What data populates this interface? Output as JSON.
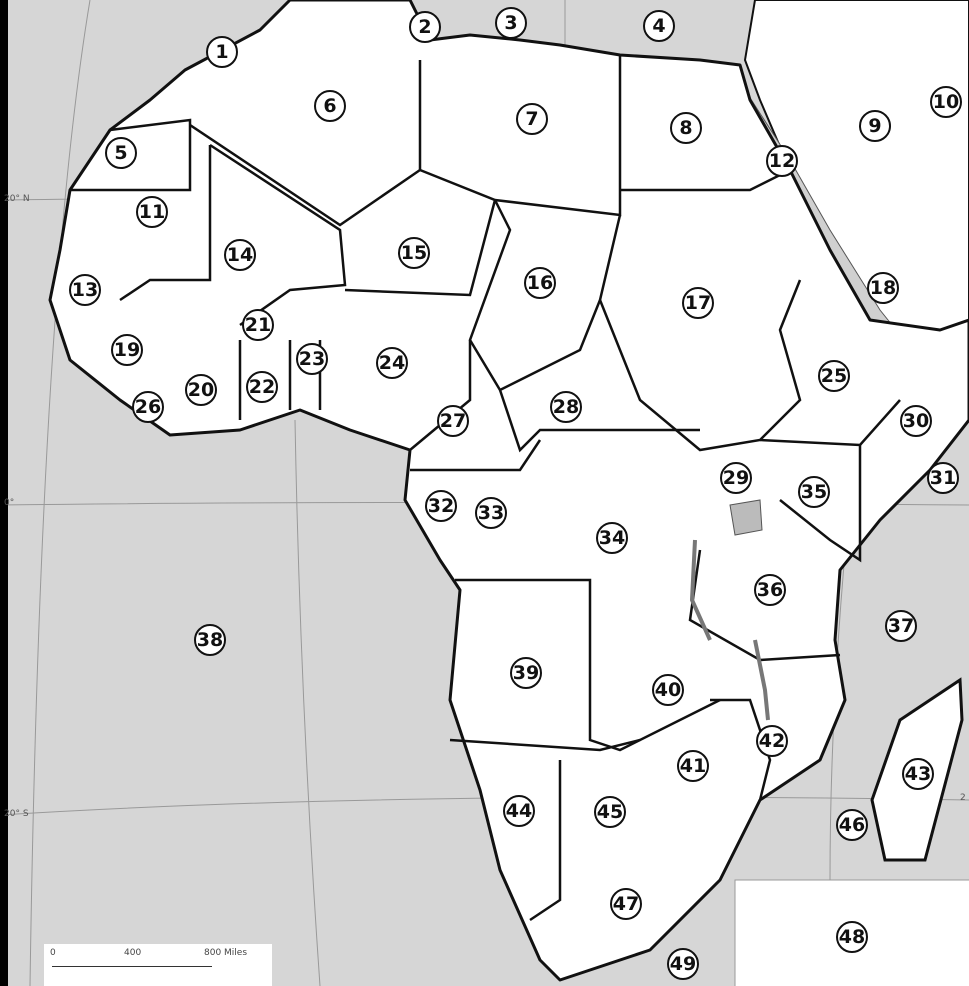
{
  "map": {
    "country_labels": [
      "1",
      "2",
      "3",
      "4",
      "5",
      "6",
      "7",
      "8",
      "9",
      "10",
      "11",
      "12",
      "13",
      "14",
      "15",
      "16",
      "17",
      "18",
      "19",
      "20",
      "21",
      "22",
      "23",
      "24",
      "25",
      "26",
      "27",
      "28",
      "29",
      "30",
      "31",
      "32",
      "33",
      "34",
      "35",
      "36",
      "37",
      "38",
      "39",
      "40",
      "41",
      "42",
      "43",
      "44",
      "45",
      "46",
      "47",
      "48",
      "49"
    ],
    "latitude_labels": {
      "north": "20° N",
      "equator": "0°",
      "south": "20° S",
      "south_right": "2"
    },
    "scale_bar": {
      "zero": "0",
      "mid": "400",
      "end": "800 Miles"
    },
    "colors": {
      "land": "#ffffff",
      "water": "#d6d6d6",
      "border": "#111111"
    }
  }
}
